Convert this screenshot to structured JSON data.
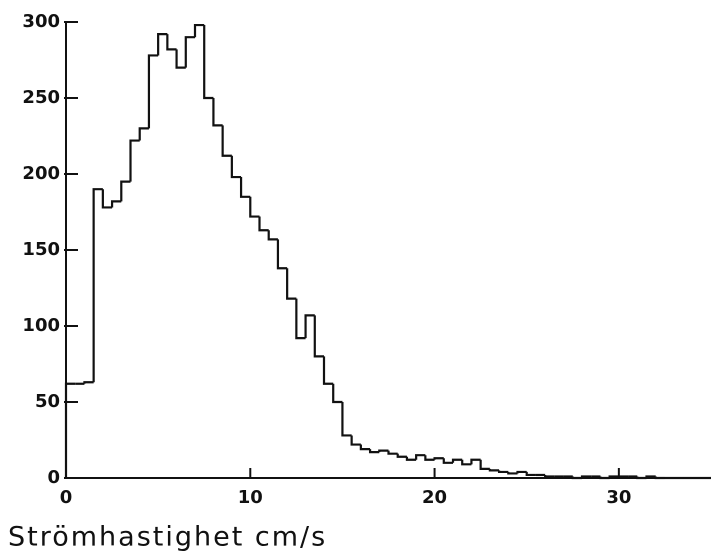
{
  "chart_data": {
    "type": "histogram",
    "xlabel": "Strömhastighet cm/s",
    "bins": [
      0,
      0.5,
      1,
      1.5,
      2,
      2.5,
      3,
      3.5,
      4,
      4.5,
      5,
      5.5,
      6,
      6.5,
      7,
      7.5,
      8,
      8.5,
      9,
      9.5,
      10,
      10.5,
      11,
      11.5,
      12,
      12.5,
      13,
      13.5,
      14,
      14.5,
      15,
      15.5,
      16,
      16.5,
      17,
      17.5,
      18,
      18.5,
      19,
      19.5,
      20,
      20.5,
      21,
      21.5,
      22,
      22.5,
      23,
      23.5,
      24,
      24.5,
      25,
      25.5,
      26,
      26.5,
      27,
      27.5,
      28,
      28.5,
      29,
      29.5,
      30,
      30.5,
      31,
      31.5,
      32,
      32.5,
      33,
      33.5,
      34,
      34.5,
      35
    ],
    "values": [
      62,
      62,
      63,
      190,
      178,
      182,
      195,
      222,
      230,
      278,
      292,
      282,
      270,
      290,
      298,
      250,
      232,
      212,
      198,
      185,
      172,
      163,
      157,
      138,
      118,
      92,
      107,
      80,
      62,
      50,
      28,
      22,
      19,
      17,
      18,
      16,
      14,
      12,
      15,
      12,
      13,
      10,
      12,
      9,
      12,
      6,
      5,
      4,
      3,
      4,
      2,
      2,
      1,
      1,
      1,
      0,
      1,
      1,
      0,
      1,
      1,
      1,
      0,
      1,
      0,
      0,
      0,
      0,
      0,
      0
    ],
    "color": "#111111",
    "xlim": [
      0,
      35
    ],
    "ylim": [
      0,
      300
    ],
    "xticks": [
      0,
      10,
      20,
      30
    ],
    "yticks": [
      0,
      50,
      100,
      150,
      200,
      250,
      300
    ]
  }
}
